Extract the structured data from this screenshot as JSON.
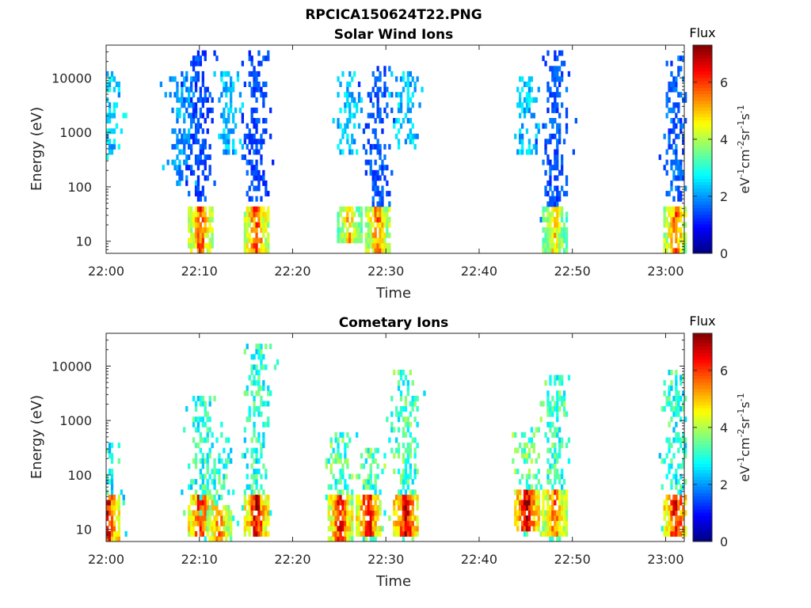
{
  "figure": {
    "title": "RPCICA150624T22.PNG"
  },
  "chart_data": [
    {
      "type": "heatmap",
      "title": "Solar Wind Ions",
      "xlabel": "Time",
      "ylabel": "Energy (eV)",
      "x_range": [
        "22:00",
        "23:02"
      ],
      "ylim": [
        6,
        40000
      ],
      "yscale": "log",
      "xticks": [
        "22:00",
        "22:10",
        "22:20",
        "22:30",
        "22:40",
        "22:50",
        "23:00"
      ],
      "yticks": [
        "10",
        "100",
        "1000",
        "10000"
      ],
      "colorbar": {
        "title": "Flux",
        "label": "eV-1cm-2sr-1s-1",
        "range": [
          0,
          7.3
        ],
        "ticks": [
          "0",
          "2",
          "4",
          "6"
        ],
        "colormap": "jet"
      },
      "features": [
        {
          "t": "22:00",
          "emin": 300,
          "emax": 12000,
          "flux": 2.4,
          "low_emin": 0,
          "low_emax": 0,
          "low_flux": 0
        },
        {
          "t": "22:08",
          "emin": 100,
          "emax": 12000,
          "flux": 2.0,
          "low_emin": 0,
          "low_emax": 0,
          "low_flux": 0
        },
        {
          "t": "22:10",
          "emin": 50,
          "emax": 32000,
          "flux": 1.4,
          "low_emin": 6,
          "low_emax": 45,
          "low_flux": 5.8
        },
        {
          "t": "22:13",
          "emin": 400,
          "emax": 14000,
          "flux": 2.2,
          "low_emin": 0,
          "low_emax": 0,
          "low_flux": 0
        },
        {
          "t": "22:16",
          "emin": 50,
          "emax": 32000,
          "flux": 1.4,
          "low_emin": 6,
          "low_emax": 45,
          "low_flux": 5.9
        },
        {
          "t": "22:26",
          "emin": 400,
          "emax": 12000,
          "flux": 2.3,
          "low_emin": 10,
          "low_emax": 45,
          "low_flux": 5.0
        },
        {
          "t": "22:29",
          "emin": 40,
          "emax": 18000,
          "flux": 1.5,
          "low_emin": 6,
          "low_emax": 45,
          "low_flux": 5.5
        },
        {
          "t": "22:32",
          "emin": 500,
          "emax": 12000,
          "flux": 2.3,
          "low_emin": 0,
          "low_emax": 0,
          "low_flux": 0
        },
        {
          "t": "22:45",
          "emin": 400,
          "emax": 10000,
          "flux": 2.3,
          "low_emin": 0,
          "low_emax": 0,
          "low_flux": 0
        },
        {
          "t": "22:48",
          "emin": 20,
          "emax": 32000,
          "flux": 1.5,
          "low_emin": 6,
          "low_emax": 45,
          "low_flux": 4.8
        },
        {
          "t": "23:01",
          "emin": 60,
          "emax": 30000,
          "flux": 1.6,
          "low_emin": 6,
          "low_emax": 45,
          "low_flux": 5.6
        }
      ]
    },
    {
      "type": "heatmap",
      "title": "Cometary Ions",
      "xlabel": "Time",
      "ylabel": "Energy (eV)",
      "x_range": [
        "22:00",
        "23:02"
      ],
      "ylim": [
        6,
        40000
      ],
      "yscale": "log",
      "xticks": [
        "22:00",
        "22:10",
        "22:20",
        "22:30",
        "22:40",
        "22:50",
        "23:00"
      ],
      "yticks": [
        "10",
        "100",
        "1000",
        "10000"
      ],
      "colorbar": {
        "title": "Flux",
        "label": "eV-1cm-2sr-1s-1",
        "range": [
          0,
          7.3
        ],
        "ticks": [
          "0",
          "2",
          "4",
          "6"
        ],
        "colormap": "jet"
      },
      "features": [
        {
          "t": "22:00",
          "emin": 6,
          "emax": 400,
          "flux": 2.8,
          "low_emin": 6,
          "low_emax": 45,
          "low_flux": 6.5
        },
        {
          "t": "22:10",
          "emin": 8,
          "emax": 3000,
          "flux": 3.0,
          "low_emin": 8,
          "low_emax": 45,
          "low_flux": 6.3
        },
        {
          "t": "22:12",
          "emin": 6,
          "emax": 500,
          "flux": 3.0,
          "low_emin": 6,
          "low_emax": 30,
          "low_flux": 5.5
        },
        {
          "t": "22:16",
          "emin": 8,
          "emax": 25000,
          "flux": 3.0,
          "low_emin": 8,
          "low_emax": 45,
          "low_flux": 6.5
        },
        {
          "t": "22:25",
          "emin": 6,
          "emax": 600,
          "flux": 3.3,
          "low_emin": 6,
          "low_emax": 45,
          "low_flux": 6.2
        },
        {
          "t": "22:28",
          "emin": 6,
          "emax": 300,
          "flux": 3.3,
          "low_emin": 8,
          "low_emax": 45,
          "low_flux": 6.4
        },
        {
          "t": "22:32",
          "emin": 6,
          "emax": 8000,
          "flux": 3.2,
          "low_emin": 8,
          "low_emax": 45,
          "low_flux": 6.6
        },
        {
          "t": "22:45",
          "emin": 8,
          "emax": 700,
          "flux": 3.4,
          "low_emin": 10,
          "low_emax": 60,
          "low_flux": 6.8
        },
        {
          "t": "22:48",
          "emin": 6,
          "emax": 7000,
          "flux": 3.2,
          "low_emin": 8,
          "low_emax": 60,
          "low_flux": 5.6
        },
        {
          "t": "23:01",
          "emin": 8,
          "emax": 8000,
          "flux": 3.0,
          "low_emin": 8,
          "low_emax": 45,
          "low_flux": 6.4
        }
      ]
    }
  ]
}
